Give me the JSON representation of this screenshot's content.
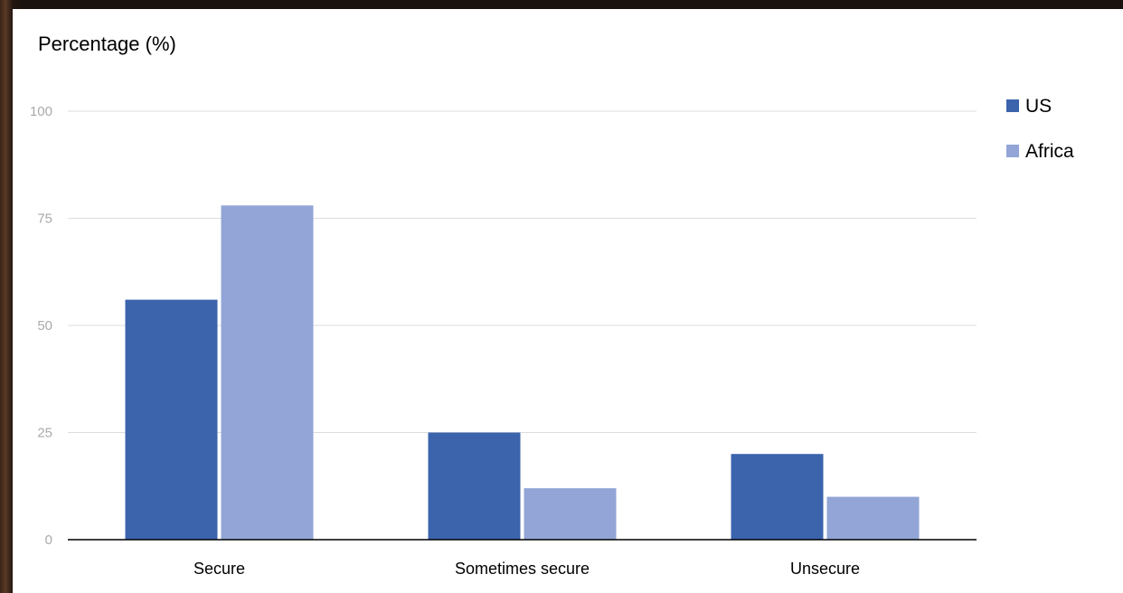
{
  "chart_data": {
    "type": "bar",
    "title": "",
    "ylabel": "Percentage (%)",
    "xlabel": "",
    "categories": [
      "Secure",
      "Sometimes secure",
      "Unsecure"
    ],
    "series": [
      {
        "name": "US",
        "values": [
          56,
          25,
          20
        ],
        "color": "#3c64ad"
      },
      {
        "name": "Africa",
        "values": [
          78,
          12,
          10
        ],
        "color": "#92a5d6"
      }
    ],
    "ylim": [
      0,
      100
    ],
    "yticks": [
      "0",
      "25",
      "50",
      "75",
      "100"
    ],
    "ytick_values": [
      0,
      25,
      50,
      75,
      100
    ],
    "grid": true,
    "legend": "top-right"
  },
  "colors": {
    "grid": "#dddddd",
    "axis": "#000000",
    "tick_text": "#a9a9a9"
  }
}
